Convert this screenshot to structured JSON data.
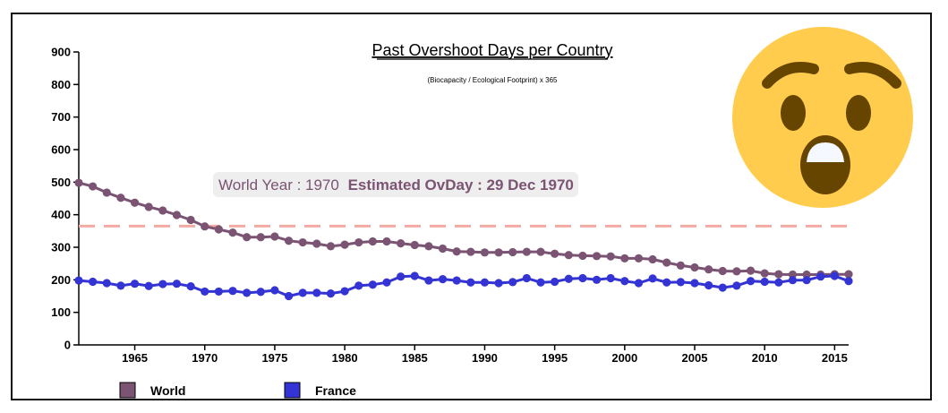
{
  "chart_data": {
    "type": "line",
    "title": "Past Overshoot Days per Country",
    "subtitle": "(Biocapacity / Ecological Footprint) x 365",
    "xlabel": "",
    "ylabel": "",
    "xlim": [
      1961,
      2016
    ],
    "ylim": [
      0,
      900
    ],
    "x_ticks": [
      1965,
      1970,
      1975,
      1980,
      1985,
      1990,
      1995,
      2000,
      2005,
      2010,
      2015
    ],
    "y_ticks": [
      0,
      100,
      200,
      300,
      400,
      500,
      600,
      700,
      800,
      900
    ],
    "reference_line": {
      "y": 365,
      "color": "#f4aaa4",
      "style": "dashed"
    },
    "grid": false,
    "legend_position": "bottom-left",
    "x": [
      1961,
      1962,
      1963,
      1964,
      1965,
      1966,
      1967,
      1968,
      1969,
      1970,
      1971,
      1972,
      1973,
      1974,
      1975,
      1976,
      1977,
      1978,
      1979,
      1980,
      1981,
      1982,
      1983,
      1984,
      1985,
      1986,
      1987,
      1988,
      1989,
      1990,
      1991,
      1992,
      1993,
      1994,
      1995,
      1996,
      1997,
      1998,
      1999,
      2000,
      2001,
      2002,
      2003,
      2004,
      2005,
      2006,
      2007,
      2008,
      2009,
      2010,
      2011,
      2012,
      2013,
      2014,
      2015,
      2016
    ],
    "series": [
      {
        "name": "World",
        "color": "#7a5472",
        "values": [
          498,
          487,
          468,
          452,
          437,
          424,
          413,
          399,
          384,
          364,
          355,
          345,
          331,
          331,
          333,
          320,
          315,
          311,
          303,
          308,
          315,
          318,
          318,
          312,
          307,
          303,
          296,
          287,
          286,
          284,
          284,
          285,
          286,
          286,
          280,
          276,
          274,
          273,
          272,
          266,
          266,
          263,
          253,
          244,
          238,
          232,
          227,
          226,
          228,
          220,
          217,
          216,
          216,
          216,
          217,
          217
        ]
      },
      {
        "name": "France",
        "color": "#3334d3",
        "values": [
          198,
          194,
          190,
          182,
          188,
          181,
          187,
          188,
          180,
          164,
          164,
          166,
          160,
          163,
          168,
          150,
          160,
          160,
          158,
          165,
          182,
          185,
          192,
          210,
          212,
          198,
          202,
          198,
          192,
          192,
          190,
          193,
          205,
          192,
          194,
          203,
          205,
          200,
          205,
          196,
          190,
          204,
          192,
          193,
          190,
          183,
          176,
          182,
          196,
          194,
          192,
          199,
          199,
          210,
          212,
          196
        ]
      }
    ],
    "annotation": {
      "prefix": "World Year : 1970",
      "label": "Estimated OvDay : 29 Dec 1970",
      "text_color": "#7a5472"
    }
  },
  "emoji": {
    "icon": "astonished-face-icon",
    "face_color": "#ffcc4d",
    "feature_color": "#664500"
  }
}
